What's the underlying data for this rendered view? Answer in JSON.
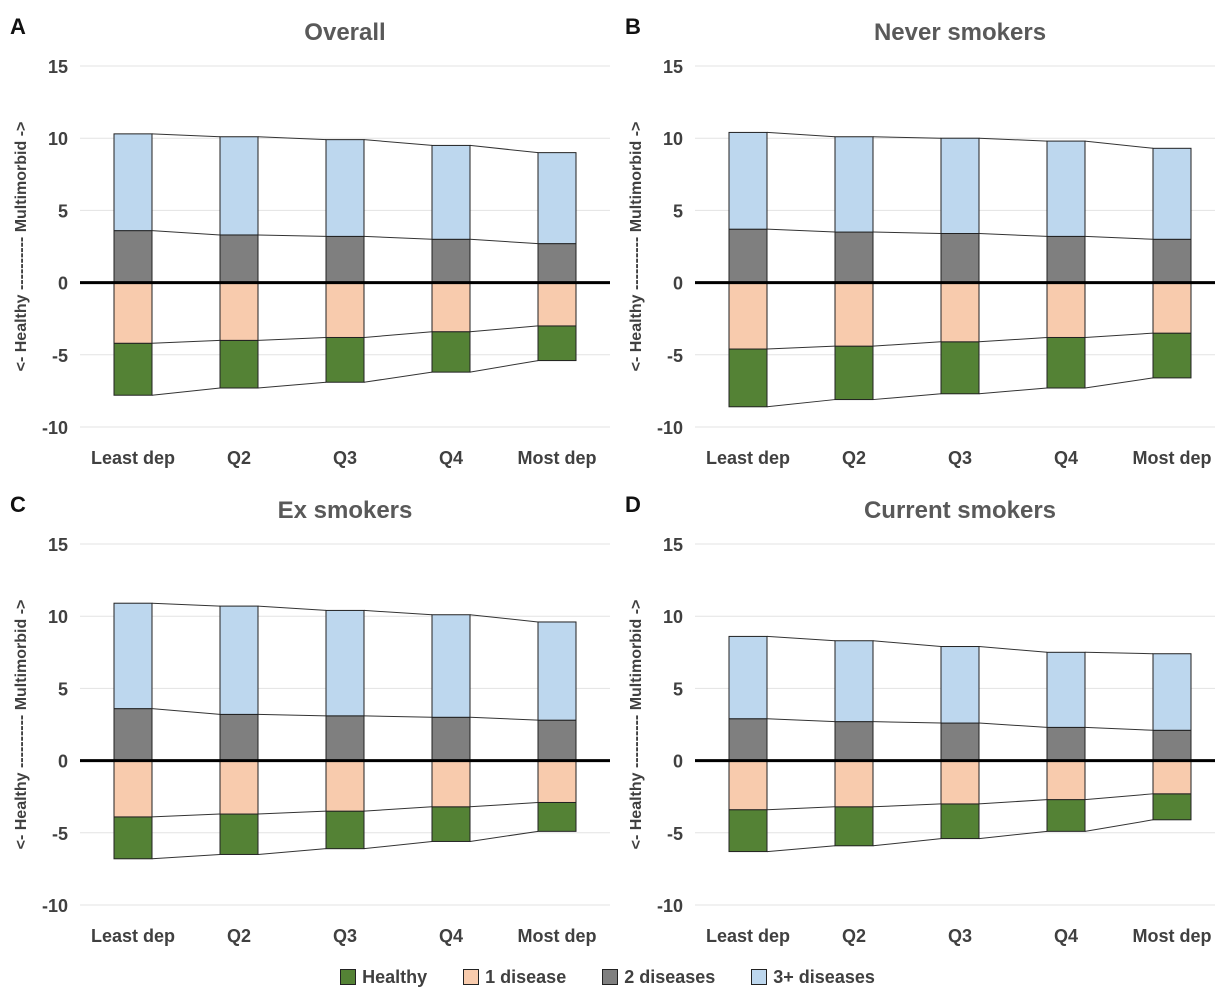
{
  "colors": {
    "healthy": "#548235",
    "one_disease": "#F8CBAD",
    "two_diseases": "#7F7F7F",
    "three_plus": "#BDD7EE"
  },
  "legend": {
    "healthy": "Healthy",
    "one_disease": "1 disease",
    "two_diseases": "2 diseases",
    "three_plus": "3+ diseases"
  },
  "chart_data": [
    {
      "panel": "A",
      "title": "Overall",
      "type": "bar",
      "ylabel": "<- Healthy ---------- Multimorbid ->",
      "ylim": [
        -10,
        15
      ],
      "yticks": [
        -10,
        -5,
        0,
        5,
        10,
        15
      ],
      "categories": [
        "Least dep",
        "Q2",
        "Q3",
        "Q4",
        "Most dep"
      ],
      "series": [
        {
          "name": "Healthy",
          "values": [
            -3.6,
            -3.3,
            -3.1,
            -2.8,
            -2.4
          ]
        },
        {
          "name": "1 disease",
          "values": [
            -4.2,
            -4.0,
            -3.8,
            -3.4,
            -3.0
          ]
        },
        {
          "name": "2 diseases",
          "values": [
            3.6,
            3.3,
            3.2,
            3.0,
            2.7
          ]
        },
        {
          "name": "3+ diseases",
          "values": [
            6.7,
            6.8,
            6.7,
            6.5,
            6.3
          ]
        }
      ]
    },
    {
      "panel": "B",
      "title": "Never smokers",
      "type": "bar",
      "ylabel": "<- Healthy ---------- Multimorbid ->",
      "ylim": [
        -10,
        15
      ],
      "yticks": [
        -10,
        -5,
        0,
        5,
        10,
        15
      ],
      "categories": [
        "Least dep",
        "Q2",
        "Q3",
        "Q4",
        "Most dep"
      ],
      "series": [
        {
          "name": "Healthy",
          "values": [
            -4.0,
            -3.7,
            -3.6,
            -3.5,
            -3.1
          ]
        },
        {
          "name": "1 disease",
          "values": [
            -4.6,
            -4.4,
            -4.1,
            -3.8,
            -3.5
          ]
        },
        {
          "name": "2 diseases",
          "values": [
            3.7,
            3.5,
            3.4,
            3.2,
            3.0
          ]
        },
        {
          "name": "3+ diseases",
          "values": [
            6.7,
            6.6,
            6.6,
            6.6,
            6.3
          ]
        }
      ]
    },
    {
      "panel": "C",
      "title": "Ex smokers",
      "type": "bar",
      "ylabel": "<- Healthy ---------- Multimorbid ->",
      "ylim": [
        -10,
        15
      ],
      "yticks": [
        -10,
        -5,
        0,
        5,
        10,
        15
      ],
      "categories": [
        "Least dep",
        "Q2",
        "Q3",
        "Q4",
        "Most dep"
      ],
      "series": [
        {
          "name": "Healthy",
          "values": [
            -2.9,
            -2.8,
            -2.6,
            -2.4,
            -2.0
          ]
        },
        {
          "name": "1 disease",
          "values": [
            -3.9,
            -3.7,
            -3.5,
            -3.2,
            -2.9
          ]
        },
        {
          "name": "2 diseases",
          "values": [
            3.6,
            3.2,
            3.1,
            3.0,
            2.8
          ]
        },
        {
          "name": "3+ diseases",
          "values": [
            7.3,
            7.5,
            7.3,
            7.1,
            6.8
          ]
        }
      ]
    },
    {
      "panel": "D",
      "title": "Current smokers",
      "type": "bar",
      "ylabel": "<- Healthy ---------- Multimorbid ->",
      "ylim": [
        -10,
        15
      ],
      "yticks": [
        -10,
        -5,
        0,
        5,
        10,
        15
      ],
      "categories": [
        "Least dep",
        "Q2",
        "Q3",
        "Q4",
        "Most dep"
      ],
      "series": [
        {
          "name": "Healthy",
          "values": [
            -2.9,
            -2.7,
            -2.4,
            -2.2,
            -1.8
          ]
        },
        {
          "name": "1 disease",
          "values": [
            -3.4,
            -3.2,
            -3.0,
            -2.7,
            -2.3
          ]
        },
        {
          "name": "2 diseases",
          "values": [
            2.9,
            2.7,
            2.6,
            2.3,
            2.1
          ]
        },
        {
          "name": "3+ diseases",
          "values": [
            5.7,
            5.6,
            5.3,
            5.2,
            5.3
          ]
        }
      ]
    }
  ]
}
